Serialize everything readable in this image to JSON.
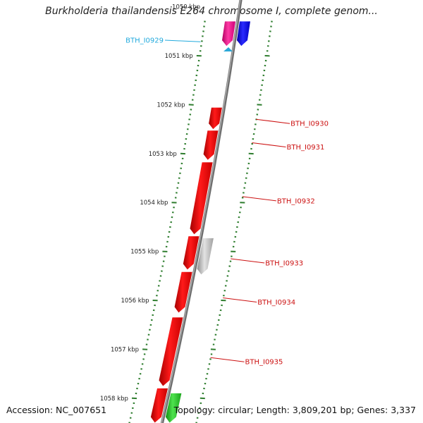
{
  "title": "Burkholderia thailandensis E264 chromosome I, complete genom...",
  "footer": {
    "accession": "Accession: NC_007651",
    "summary": "Topology: circular; Length: 3,809,201 bp; Genes: 3,337"
  },
  "colors": {
    "backbone": "#8a8a8a",
    "tick": "#2e7d2e",
    "gene_red": "#ee1111",
    "gene_gray": "#bbbbbb",
    "gene_blue": "#1a1aee",
    "gene_magenta": "#ee2299",
    "gene_green": "#22cc22",
    "label_red": "#cc1111",
    "label_cyan": "#22aadd"
  },
  "position_axis": {
    "unit": "kbp",
    "start_kbp": 1050.3,
    "end_kbp": 1058.5,
    "labeled_ticks": [
      {
        "kbp": 1050,
        "label": "1050 kbp"
      },
      {
        "kbp": 1051,
        "label": "1051 kbp"
      },
      {
        "kbp": 1052,
        "label": "1052 kbp"
      },
      {
        "kbp": 1053,
        "label": "1053 kbp"
      },
      {
        "kbp": 1054,
        "label": "1054 kbp"
      },
      {
        "kbp": 1055,
        "label": "1055 kbp"
      },
      {
        "kbp": 1056,
        "label": "1056 kbp"
      },
      {
        "kbp": 1057,
        "label": "1057 kbp"
      },
      {
        "kbp": 1058,
        "label": "1058 kbp"
      }
    ]
  },
  "genes": [
    {
      "start_kbp": 1050.3,
      "end_kbp": 1050.8,
      "strand": "outer",
      "color": "magenta"
    },
    {
      "start_kbp": 1050.3,
      "end_kbp": 1050.8,
      "strand": "inner",
      "color": "blue"
    },
    {
      "start_kbp": 1052.06,
      "end_kbp": 1052.5,
      "strand": "outer",
      "color": "red"
    },
    {
      "start_kbp": 1052.53,
      "end_kbp": 1053.13,
      "strand": "outer",
      "color": "red"
    },
    {
      "start_kbp": 1053.18,
      "end_kbp": 1054.65,
      "strand": "outer",
      "color": "red"
    },
    {
      "start_kbp": 1054.69,
      "end_kbp": 1055.37,
      "strand": "outer",
      "color": "red"
    },
    {
      "start_kbp": 1054.73,
      "end_kbp": 1055.47,
      "strand": "inner",
      "color": "gray"
    },
    {
      "start_kbp": 1055.42,
      "end_kbp": 1056.25,
      "strand": "outer",
      "color": "red"
    },
    {
      "start_kbp": 1056.35,
      "end_kbp": 1057.75,
      "strand": "outer",
      "color": "red"
    },
    {
      "start_kbp": 1057.8,
      "end_kbp": 1058.5,
      "strand": "outer",
      "color": "red"
    },
    {
      "start_kbp": 1057.9,
      "end_kbp": 1058.5,
      "strand": "inner",
      "color": "green"
    }
  ],
  "gene_labels": [
    {
      "text": "BTH_I0929",
      "kbp": 1050.73,
      "side": "left",
      "color": "cyan"
    },
    {
      "text": "BTH_I0930",
      "kbp": 1052.3,
      "side": "right",
      "color": "red"
    },
    {
      "text": "BTH_I0931",
      "kbp": 1052.78,
      "side": "right",
      "color": "red"
    },
    {
      "text": "BTH_I0932",
      "kbp": 1053.88,
      "side": "right",
      "color": "red"
    },
    {
      "text": "BTH_I0933",
      "kbp": 1055.15,
      "side": "right",
      "color": "red"
    },
    {
      "text": "BTH_I0934",
      "kbp": 1055.95,
      "side": "right",
      "color": "red"
    },
    {
      "text": "BTH_I0935",
      "kbp": 1057.17,
      "side": "right",
      "color": "red"
    }
  ]
}
